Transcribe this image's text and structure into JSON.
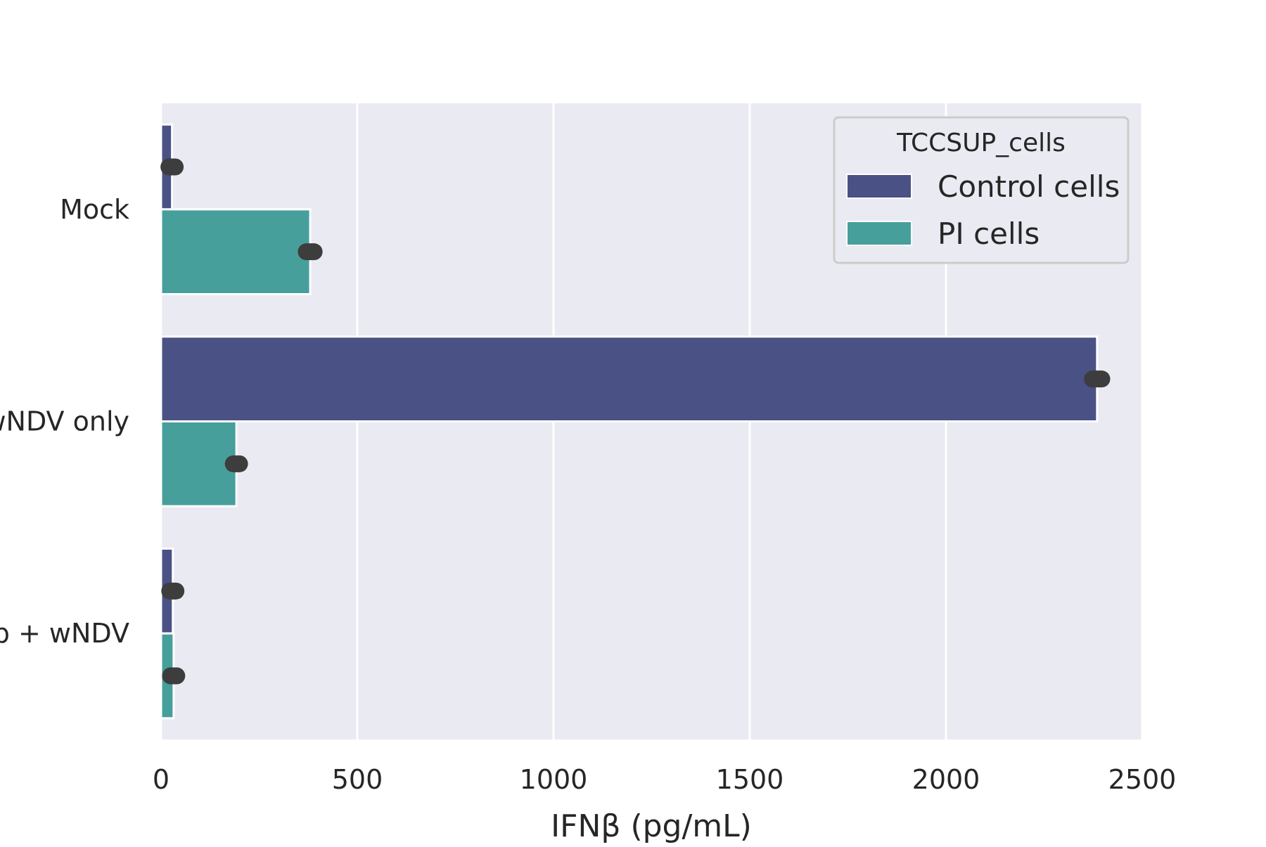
{
  "chart_data": {
    "type": "bar",
    "orientation": "horizontal",
    "categories": [
      "Mock",
      "wNDV only",
      "b + wNDV"
    ],
    "series": [
      {
        "name": "Control cells",
        "values": [
          28,
          2385,
          30
        ],
        "error": [
          8,
          12,
          8
        ]
      },
      {
        "name": "PI cells",
        "values": [
          380,
          192,
          32
        ],
        "error": [
          10,
          8,
          8
        ]
      }
    ],
    "xlabel": "IFNβ (pg/mL)",
    "ylabel": "",
    "xlim": [
      0,
      2500
    ],
    "xticks": [
      0,
      500,
      1000,
      1500,
      2000,
      2500
    ],
    "xtick_labels": [
      "0",
      "500",
      "1000",
      "1500",
      "2000",
      "2500"
    ],
    "grid": true,
    "legend": {
      "title": "TCCSUP_cells",
      "placement": "top-right"
    },
    "colors": {
      "Control cells": "#4a5185",
      "PI cells": "#479f9c",
      "plot_background": "#eaeaf2",
      "grid": "#ffffff",
      "error_bar": "#3d3d3d"
    }
  }
}
